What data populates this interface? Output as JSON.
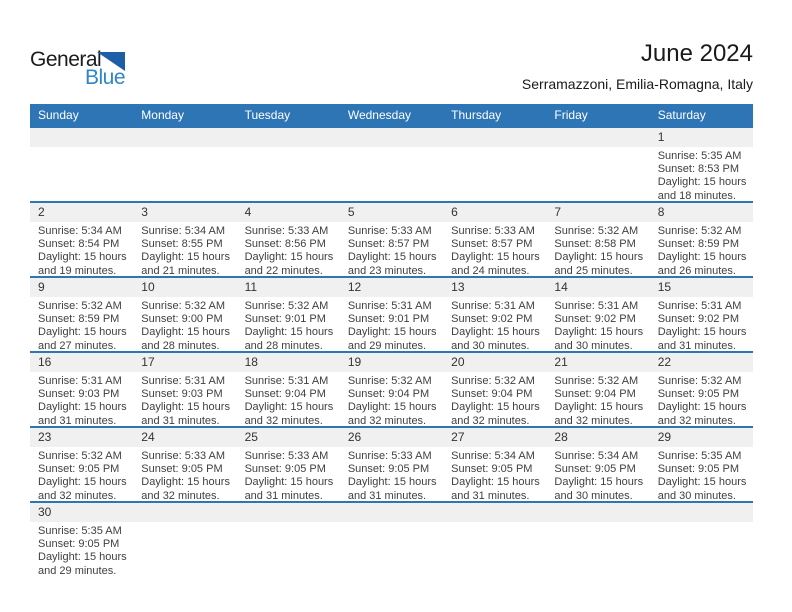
{
  "logo": {
    "part1": "General",
    "part2": "Blue"
  },
  "header": {
    "title": "June 2024",
    "subtitle": "Serramazzoni, Emilia-Romagna, Italy"
  },
  "colors": {
    "accent_blue": "#2E75B6",
    "band_gray": "#F0F0F0",
    "header_text": "#FFFFFF",
    "body_text": "#404040",
    "day_number_text": "#333333",
    "logo_blue": "#2E86C8",
    "logo_triangle_blue": "#1E5EA6"
  },
  "calendar": {
    "weekdays": [
      "Sunday",
      "Monday",
      "Tuesday",
      "Wednesday",
      "Thursday",
      "Friday",
      "Saturday"
    ],
    "weeks": [
      [
        null,
        null,
        null,
        null,
        null,
        null,
        {
          "day": "1",
          "sunrise": "Sunrise: 5:35 AM",
          "sunset": "Sunset: 8:53 PM",
          "daylight": [
            "Daylight: 15 hours",
            "and 18 minutes."
          ]
        }
      ],
      [
        {
          "day": "2",
          "sunrise": "Sunrise: 5:34 AM",
          "sunset": "Sunset: 8:54 PM",
          "daylight": [
            "Daylight: 15 hours",
            "and 19 minutes."
          ]
        },
        {
          "day": "3",
          "sunrise": "Sunrise: 5:34 AM",
          "sunset": "Sunset: 8:55 PM",
          "daylight": [
            "Daylight: 15 hours",
            "and 21 minutes."
          ]
        },
        {
          "day": "4",
          "sunrise": "Sunrise: 5:33 AM",
          "sunset": "Sunset: 8:56 PM",
          "daylight": [
            "Daylight: 15 hours",
            "and 22 minutes."
          ]
        },
        {
          "day": "5",
          "sunrise": "Sunrise: 5:33 AM",
          "sunset": "Sunset: 8:57 PM",
          "daylight": [
            "Daylight: 15 hours",
            "and 23 minutes."
          ]
        },
        {
          "day": "6",
          "sunrise": "Sunrise: 5:33 AM",
          "sunset": "Sunset: 8:57 PM",
          "daylight": [
            "Daylight: 15 hours",
            "and 24 minutes."
          ]
        },
        {
          "day": "7",
          "sunrise": "Sunrise: 5:32 AM",
          "sunset": "Sunset: 8:58 PM",
          "daylight": [
            "Daylight: 15 hours",
            "and 25 minutes."
          ]
        },
        {
          "day": "8",
          "sunrise": "Sunrise: 5:32 AM",
          "sunset": "Sunset: 8:59 PM",
          "daylight": [
            "Daylight: 15 hours",
            "and 26 minutes."
          ]
        }
      ],
      [
        {
          "day": "9",
          "sunrise": "Sunrise: 5:32 AM",
          "sunset": "Sunset: 8:59 PM",
          "daylight": [
            "Daylight: 15 hours",
            "and 27 minutes."
          ]
        },
        {
          "day": "10",
          "sunrise": "Sunrise: 5:32 AM",
          "sunset": "Sunset: 9:00 PM",
          "daylight": [
            "Daylight: 15 hours",
            "and 28 minutes."
          ]
        },
        {
          "day": "11",
          "sunrise": "Sunrise: 5:32 AM",
          "sunset": "Sunset: 9:01 PM",
          "daylight": [
            "Daylight: 15 hours",
            "and 28 minutes."
          ]
        },
        {
          "day": "12",
          "sunrise": "Sunrise: 5:31 AM",
          "sunset": "Sunset: 9:01 PM",
          "daylight": [
            "Daylight: 15 hours",
            "and 29 minutes."
          ]
        },
        {
          "day": "13",
          "sunrise": "Sunrise: 5:31 AM",
          "sunset": "Sunset: 9:02 PM",
          "daylight": [
            "Daylight: 15 hours",
            "and 30 minutes."
          ]
        },
        {
          "day": "14",
          "sunrise": "Sunrise: 5:31 AM",
          "sunset": "Sunset: 9:02 PM",
          "daylight": [
            "Daylight: 15 hours",
            "and 30 minutes."
          ]
        },
        {
          "day": "15",
          "sunrise": "Sunrise: 5:31 AM",
          "sunset": "Sunset: 9:02 PM",
          "daylight": [
            "Daylight: 15 hours",
            "and 31 minutes."
          ]
        }
      ],
      [
        {
          "day": "16",
          "sunrise": "Sunrise: 5:31 AM",
          "sunset": "Sunset: 9:03 PM",
          "daylight": [
            "Daylight: 15 hours",
            "and 31 minutes."
          ]
        },
        {
          "day": "17",
          "sunrise": "Sunrise: 5:31 AM",
          "sunset": "Sunset: 9:03 PM",
          "daylight": [
            "Daylight: 15 hours",
            "and 31 minutes."
          ]
        },
        {
          "day": "18",
          "sunrise": "Sunrise: 5:31 AM",
          "sunset": "Sunset: 9:04 PM",
          "daylight": [
            "Daylight: 15 hours",
            "and 32 minutes."
          ]
        },
        {
          "day": "19",
          "sunrise": "Sunrise: 5:32 AM",
          "sunset": "Sunset: 9:04 PM",
          "daylight": [
            "Daylight: 15 hours",
            "and 32 minutes."
          ]
        },
        {
          "day": "20",
          "sunrise": "Sunrise: 5:32 AM",
          "sunset": "Sunset: 9:04 PM",
          "daylight": [
            "Daylight: 15 hours",
            "and 32 minutes."
          ]
        },
        {
          "day": "21",
          "sunrise": "Sunrise: 5:32 AM",
          "sunset": "Sunset: 9:04 PM",
          "daylight": [
            "Daylight: 15 hours",
            "and 32 minutes."
          ]
        },
        {
          "day": "22",
          "sunrise": "Sunrise: 5:32 AM",
          "sunset": "Sunset: 9:05 PM",
          "daylight": [
            "Daylight: 15 hours",
            "and 32 minutes."
          ]
        }
      ],
      [
        {
          "day": "23",
          "sunrise": "Sunrise: 5:32 AM",
          "sunset": "Sunset: 9:05 PM",
          "daylight": [
            "Daylight: 15 hours",
            "and 32 minutes."
          ]
        },
        {
          "day": "24",
          "sunrise": "Sunrise: 5:33 AM",
          "sunset": "Sunset: 9:05 PM",
          "daylight": [
            "Daylight: 15 hours",
            "and 32 minutes."
          ]
        },
        {
          "day": "25",
          "sunrise": "Sunrise: 5:33 AM",
          "sunset": "Sunset: 9:05 PM",
          "daylight": [
            "Daylight: 15 hours",
            "and 31 minutes."
          ]
        },
        {
          "day": "26",
          "sunrise": "Sunrise: 5:33 AM",
          "sunset": "Sunset: 9:05 PM",
          "daylight": [
            "Daylight: 15 hours",
            "and 31 minutes."
          ]
        },
        {
          "day": "27",
          "sunrise": "Sunrise: 5:34 AM",
          "sunset": "Sunset: 9:05 PM",
          "daylight": [
            "Daylight: 15 hours",
            "and 31 minutes."
          ]
        },
        {
          "day": "28",
          "sunrise": "Sunrise: 5:34 AM",
          "sunset": "Sunset: 9:05 PM",
          "daylight": [
            "Daylight: 15 hours",
            "and 30 minutes."
          ]
        },
        {
          "day": "29",
          "sunrise": "Sunrise: 5:35 AM",
          "sunset": "Sunset: 9:05 PM",
          "daylight": [
            "Daylight: 15 hours",
            "and 30 minutes."
          ]
        }
      ],
      [
        {
          "day": "30",
          "sunrise": "Sunrise: 5:35 AM",
          "sunset": "Sunset: 9:05 PM",
          "daylight": [
            "Daylight: 15 hours",
            "and 29 minutes."
          ]
        },
        null,
        null,
        null,
        null,
        null,
        null
      ]
    ]
  }
}
